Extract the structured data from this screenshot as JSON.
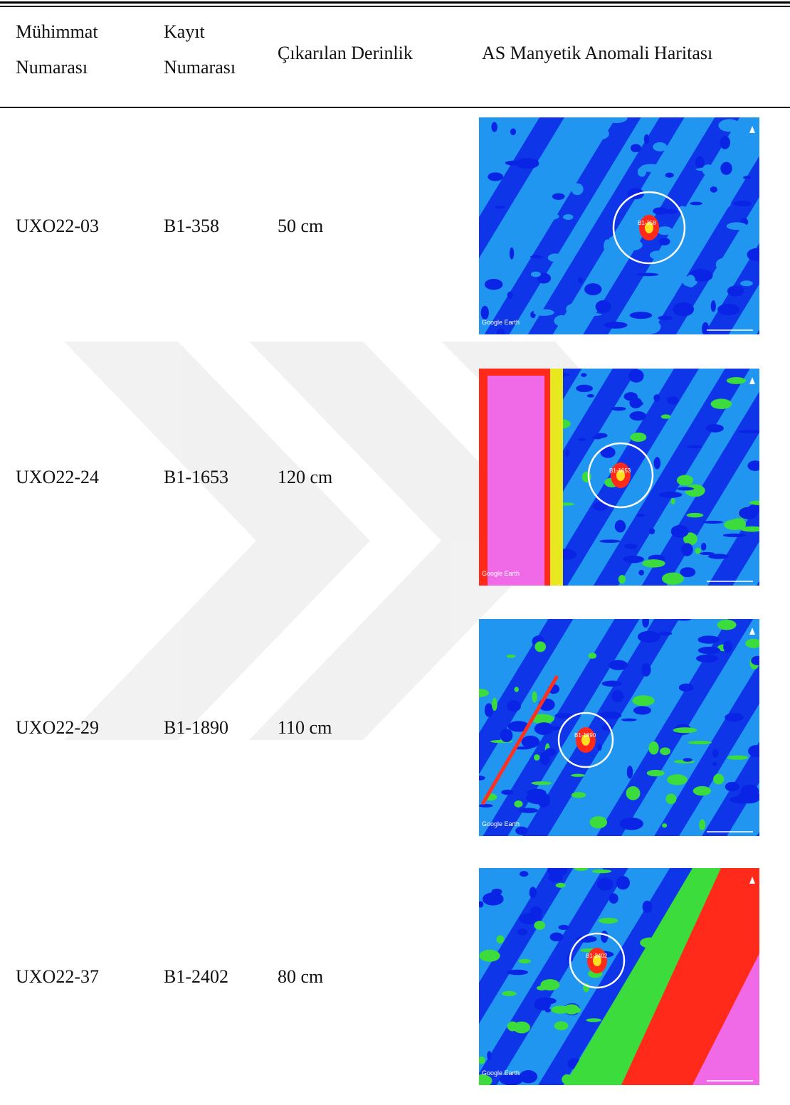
{
  "table": {
    "header": [
      [
        "Mühimmat",
        "Numarası"
      ],
      [
        "Kayıt",
        "Numarası"
      ],
      [
        "Çıkarılan Derinlik"
      ],
      [
        "AS Manyetik Anomali Haritası"
      ]
    ],
    "rows": [
      {
        "cells": [
          "UXO22-03",
          "B1-358",
          "50 cm"
        ],
        "map_credit": "Google Earth"
      },
      {
        "cells": [
          "UXO22-24",
          "B1-1653",
          "120 cm"
        ],
        "map_credit": "Google Earth"
      },
      {
        "cells": [
          "UXO22-29",
          "B1-1890",
          "110 cm"
        ],
        "map_credit": "Google Earth"
      },
      {
        "cells": [
          "UXO22-37",
          "B1-2402",
          "80 cm"
        ],
        "map_credit": "Google Earth"
      }
    ]
  }
}
